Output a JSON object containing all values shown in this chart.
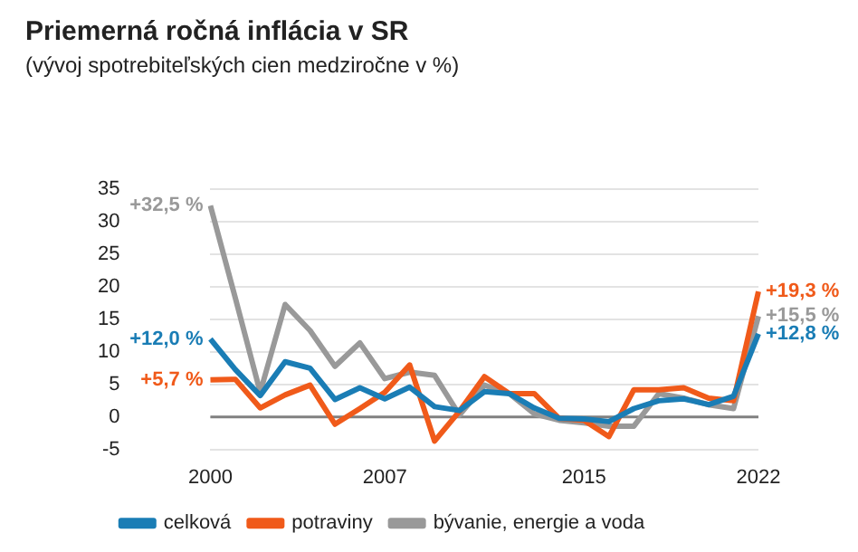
{
  "chart_data": {
    "type": "line",
    "title": "Priemerná ročná inflácia v SR",
    "subtitle": "(vývoj spotrebiteľských cien medziročne v %)",
    "categories": [
      "2000",
      null,
      null,
      null,
      null,
      null,
      null,
      "2007",
      null,
      null,
      null,
      null,
      null,
      null,
      null,
      "2015",
      null,
      null,
      null,
      null,
      null,
      null,
      "2022"
    ],
    "series": [
      {
        "name": "celková",
        "color": "#1a7db5",
        "values": [
          12.0,
          7.3,
          3.3,
          8.5,
          7.5,
          2.7,
          4.5,
          2.8,
          4.6,
          1.6,
          1.0,
          3.9,
          3.6,
          1.4,
          -0.2,
          -0.3,
          -0.7,
          1.3,
          2.5,
          2.8,
          1.9,
          3.2,
          12.8
        ]
      },
      {
        "name": "potraviny",
        "color": "#f05a1a",
        "values": [
          5.7,
          5.8,
          1.4,
          3.4,
          4.9,
          -1.1,
          1.3,
          3.8,
          8.0,
          -3.7,
          0.9,
          6.2,
          3.6,
          3.6,
          -0.2,
          -0.5,
          -3.0,
          4.2,
          4.2,
          4.5,
          2.9,
          2.5,
          19.3
        ]
      },
      {
        "name": "bývanie, energie a voda",
        "color": "#999999",
        "values": [
          32.5,
          18.3,
          3.8,
          17.3,
          13.3,
          7.8,
          11.4,
          5.9,
          6.9,
          6.4,
          0.3,
          4.9,
          3.6,
          0.5,
          -0.5,
          -0.9,
          -1.4,
          -1.4,
          3.6,
          2.9,
          1.9,
          1.3,
          15.5
        ]
      }
    ],
    "annotations": [
      {
        "text": "+32,5 %",
        "x": "2000",
        "y": 32.5
      },
      {
        "text": "+12,0 %",
        "x": "2000",
        "y": 12.0
      },
      {
        "text": "+5,7 %",
        "x": "2000",
        "y": 5.7
      },
      {
        "text": "+19,3 %",
        "x": "2022",
        "y": 19.3
      },
      {
        "text": "+15,5 %",
        "x": "2022",
        "y": 15.5
      },
      {
        "text": "+12,8 %",
        "x": "2022",
        "y": 12.8
      }
    ],
    "ylim": [
      -5,
      35
    ],
    "yticks": [
      -5,
      0,
      5,
      10,
      15,
      20,
      25,
      30,
      35
    ],
    "grid": "y",
    "legend": "bottom",
    "marker": "none",
    "line_style": "solid",
    "ref_lines": [
      {
        "axis": "y",
        "value": 0,
        "color": "#808080"
      }
    ]
  }
}
